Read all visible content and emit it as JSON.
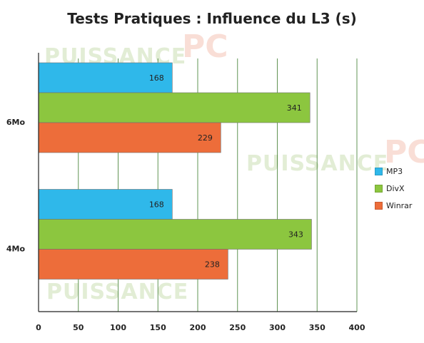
{
  "chart_data": {
    "type": "bar",
    "orientation": "horizontal",
    "title": "Tests Pratiques : Influence du L3 (s)",
    "categories": [
      "6Mo",
      "4Mo"
    ],
    "series": [
      {
        "name": "MP3",
        "color": "#2fb8ea",
        "values": [
          168,
          168
        ]
      },
      {
        "name": "DivX",
        "color": "#8cc63f",
        "values": [
          341,
          343
        ]
      },
      {
        "name": "Winrar",
        "color": "#ed6d3a",
        "values": [
          229,
          238
        ]
      }
    ],
    "xlim": [
      0,
      400
    ],
    "xticks": [
      "0",
      "50",
      "100",
      "150",
      "200",
      "250",
      "300",
      "350",
      "400"
    ],
    "xlabel": "",
    "ylabel": "",
    "grid": true,
    "legend_position": "right"
  },
  "watermark": {
    "text": "PUISSANCE",
    "accent": "PC"
  }
}
